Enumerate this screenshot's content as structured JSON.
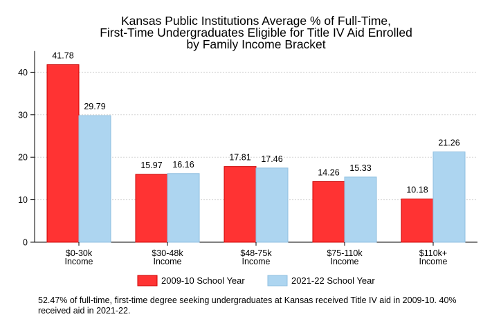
{
  "chart_data": {
    "type": "bar",
    "title_lines": [
      "Kansas Public Institutions Average % of Full-Time,",
      "First-Time Undergraduates Eligible for Title IV Aid Enrolled",
      "by Family Income Bracket"
    ],
    "categories": [
      [
        "$0-30k",
        "Income"
      ],
      [
        "$30-48k",
        "Income"
      ],
      [
        "$48-75k",
        "Income"
      ],
      [
        "$75-110k",
        "Income"
      ],
      [
        "$110k+",
        "Income"
      ]
    ],
    "series": [
      {
        "name": "2009-10 School Year",
        "values": [
          41.78,
          15.97,
          17.81,
          14.26,
          10.18
        ],
        "color": "#ff3333",
        "stroke": "#cc0000"
      },
      {
        "name": "2021-22 School Year",
        "values": [
          29.79,
          16.16,
          17.46,
          15.33,
          21.26
        ],
        "color": "#add5f0",
        "stroke": "#8fbfe0"
      }
    ],
    "data_labels": [
      [
        "41.78",
        "15.97",
        "17.81",
        "14.26",
        "10.18"
      ],
      [
        "29.79",
        "16.16",
        "17.46",
        "15.33",
        "21.26"
      ]
    ],
    "y_ticks": [
      0,
      10,
      20,
      30,
      40
    ],
    "ylim": [
      0,
      45
    ],
    "grid": true,
    "legend_position": "bottom",
    "xlabel": "",
    "ylabel": ""
  },
  "footnote": "52.47% of full-time, first-time degree seeking undergraduates at Kansas received Title IV aid in 2009-10. 40% received aid in 2021-22."
}
